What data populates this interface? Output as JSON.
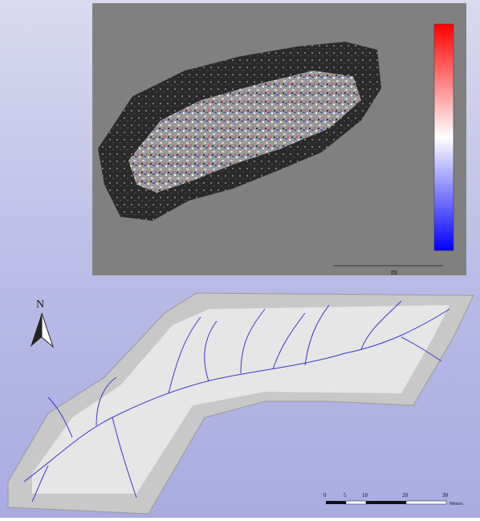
{
  "point_cloud": {
    "unit_label": "m"
  },
  "map": {
    "north_label": "N",
    "scale_bar": {
      "labels": [
        "0",
        "5",
        "10",
        "20",
        "30"
      ],
      "unit": "Meters"
    }
  }
}
